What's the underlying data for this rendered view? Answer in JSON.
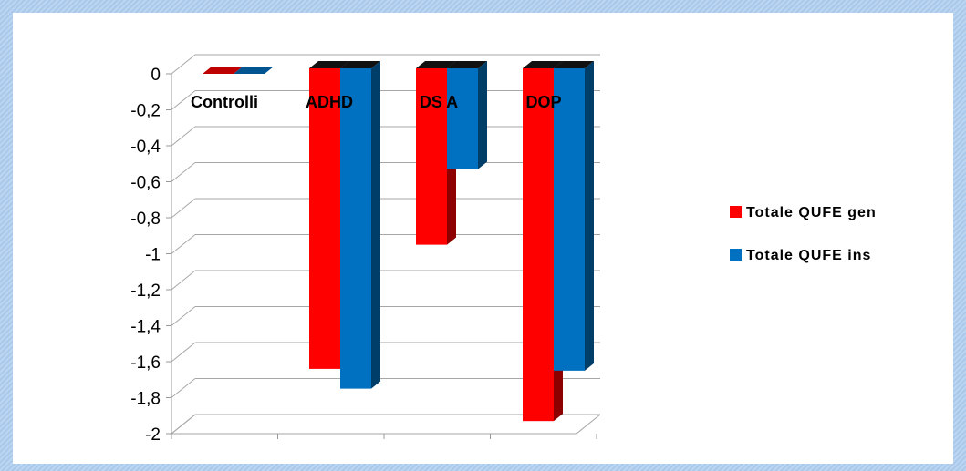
{
  "chart_data": {
    "type": "bar",
    "style": "3d-clustered-column",
    "categories": [
      "Controlli",
      "ADHD",
      "DS A",
      "DOP"
    ],
    "series": [
      {
        "name": "Totale QUFE gen",
        "color": "#ff0000",
        "values": [
          0,
          -1.64,
          -0.95,
          -1.93
        ]
      },
      {
        "name": "Totale QUFE ins",
        "color": "#0070c0",
        "values": [
          0,
          -1.75,
          -0.53,
          -1.65
        ]
      }
    ],
    "yticks": [
      "0",
      "-0,2",
      "-0,4",
      "-0,6",
      "-0,8",
      "-1",
      "-1,2",
      "-1,4",
      "-1,6",
      "-1,8",
      "-2"
    ],
    "ylim": [
      -2,
      0
    ],
    "grid": true,
    "legend": "right",
    "title": "",
    "xlabel": "",
    "ylabel": ""
  }
}
